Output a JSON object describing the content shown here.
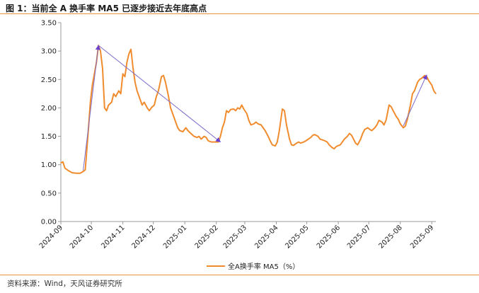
{
  "header": {
    "title": "图 1：当前全 A 换手率 MA5 已逐步接近去年底高点"
  },
  "footer": {
    "source": "资料来源：Wind，天风证券研究所"
  },
  "colors": {
    "series": "#F08C2E",
    "arrow": "#7B6BC8",
    "arrowhead": "#6A3FD0",
    "rule": "#E8913A",
    "axis": "#9a9a9a"
  },
  "chart_data": {
    "type": "line",
    "title": "",
    "xlabel": "",
    "ylabel": "",
    "ylim": [
      0,
      3.5
    ],
    "y_ticks": [
      "0.00",
      "0.50",
      "1.00",
      "1.50",
      "2.00",
      "2.50",
      "3.00",
      "3.50"
    ],
    "x_ticks": [
      "2024-09",
      "2024-10",
      "2024-11",
      "2024-12",
      "2025-01",
      "2025-02",
      "2025-03",
      "2025-04",
      "2025-05",
      "2025-06",
      "2025-07",
      "2025-08",
      "2025-09"
    ],
    "xlim": [
      "2024-09-01",
      "2025-09-05"
    ],
    "grid": false,
    "legend": "bottom-center",
    "series": [
      {
        "name": "全A换手率 MA5（%）",
        "points": [
          [
            "2024-09-01",
            1.03
          ],
          [
            "2024-09-03",
            1.05
          ],
          [
            "2024-09-05",
            0.94
          ],
          [
            "2024-09-08",
            0.9
          ],
          [
            "2024-09-12",
            0.86
          ],
          [
            "2024-09-16",
            0.85
          ],
          [
            "2024-09-20",
            0.85
          ],
          [
            "2024-09-23",
            0.88
          ],
          [
            "2024-09-25",
            0.91
          ],
          [
            "2024-09-28",
            1.6
          ],
          [
            "2024-09-30",
            2.1
          ],
          [
            "2024-10-02",
            2.4
          ],
          [
            "2024-10-04",
            2.6
          ],
          [
            "2024-10-06",
            2.8
          ],
          [
            "2024-10-08",
            3.1
          ],
          [
            "2024-10-10",
            3.0
          ],
          [
            "2024-10-12",
            2.7
          ],
          [
            "2024-10-14",
            2.0
          ],
          [
            "2024-10-16",
            1.95
          ],
          [
            "2024-10-18",
            2.05
          ],
          [
            "2024-10-21",
            2.1
          ],
          [
            "2024-10-23",
            2.25
          ],
          [
            "2024-10-25",
            2.2
          ],
          [
            "2024-10-28",
            2.3
          ],
          [
            "2024-10-30",
            2.25
          ],
          [
            "2024-11-01",
            2.6
          ],
          [
            "2024-11-03",
            2.55
          ],
          [
            "2024-11-05",
            2.8
          ],
          [
            "2024-11-07",
            2.95
          ],
          [
            "2024-11-09",
            3.03
          ],
          [
            "2024-11-11",
            2.7
          ],
          [
            "2024-11-13",
            2.45
          ],
          [
            "2024-11-15",
            2.3
          ],
          [
            "2024-11-18",
            2.15
          ],
          [
            "2024-11-20",
            2.05
          ],
          [
            "2024-11-22",
            2.1
          ],
          [
            "2024-11-25",
            2.0
          ],
          [
            "2024-11-27",
            1.95
          ],
          [
            "2024-11-29",
            2.0
          ],
          [
            "2024-12-02",
            2.05
          ],
          [
            "2024-12-04",
            2.2
          ],
          [
            "2024-12-06",
            2.3
          ],
          [
            "2024-12-09",
            2.55
          ],
          [
            "2024-12-11",
            2.57
          ],
          [
            "2024-12-13",
            2.45
          ],
          [
            "2024-12-16",
            2.2
          ],
          [
            "2024-12-18",
            2.0
          ],
          [
            "2024-12-20",
            1.9
          ],
          [
            "2024-12-23",
            1.75
          ],
          [
            "2024-12-25",
            1.65
          ],
          [
            "2024-12-27",
            1.6
          ],
          [
            "2024-12-30",
            1.58
          ],
          [
            "2025-01-02",
            1.65
          ],
          [
            "2025-01-04",
            1.6
          ],
          [
            "2025-01-07",
            1.55
          ],
          [
            "2025-01-10",
            1.5
          ],
          [
            "2025-01-13",
            1.48
          ],
          [
            "2025-01-15",
            1.5
          ],
          [
            "2025-01-17",
            1.45
          ],
          [
            "2025-01-20",
            1.5
          ],
          [
            "2025-01-22",
            1.48
          ],
          [
            "2025-01-24",
            1.42
          ],
          [
            "2025-01-27",
            1.4
          ],
          [
            "2025-02-03",
            1.4
          ],
          [
            "2025-02-05",
            1.5
          ],
          [
            "2025-02-07",
            1.65
          ],
          [
            "2025-02-09",
            1.75
          ],
          [
            "2025-02-11",
            1.95
          ],
          [
            "2025-02-13",
            1.92
          ],
          [
            "2025-02-15",
            1.97
          ],
          [
            "2025-02-18",
            1.98
          ],
          [
            "2025-02-20",
            1.95
          ],
          [
            "2025-02-22",
            2.0
          ],
          [
            "2025-02-24",
            1.98
          ],
          [
            "2025-02-26",
            2.05
          ],
          [
            "2025-02-28",
            1.98
          ],
          [
            "2025-03-03",
            1.9
          ],
          [
            "2025-03-05",
            1.78
          ],
          [
            "2025-03-07",
            1.7
          ],
          [
            "2025-03-10",
            1.72
          ],
          [
            "2025-03-12",
            1.75
          ],
          [
            "2025-03-14",
            1.72
          ],
          [
            "2025-03-17",
            1.7
          ],
          [
            "2025-03-19",
            1.65
          ],
          [
            "2025-03-21",
            1.6
          ],
          [
            "2025-03-24",
            1.5
          ],
          [
            "2025-03-26",
            1.42
          ],
          [
            "2025-03-28",
            1.35
          ],
          [
            "2025-03-31",
            1.33
          ],
          [
            "2025-04-02",
            1.4
          ],
          [
            "2025-04-04",
            1.6
          ],
          [
            "2025-04-07",
            1.98
          ],
          [
            "2025-04-09",
            1.95
          ],
          [
            "2025-04-11",
            1.7
          ],
          [
            "2025-04-14",
            1.45
          ],
          [
            "2025-04-16",
            1.35
          ],
          [
            "2025-04-18",
            1.34
          ],
          [
            "2025-04-21",
            1.38
          ],
          [
            "2025-04-23",
            1.4
          ],
          [
            "2025-04-25",
            1.38
          ],
          [
            "2025-04-28",
            1.4
          ],
          [
            "2025-04-30",
            1.42
          ],
          [
            "2025-05-05",
            1.48
          ],
          [
            "2025-05-07",
            1.52
          ],
          [
            "2025-05-09",
            1.53
          ],
          [
            "2025-05-12",
            1.5
          ],
          [
            "2025-05-14",
            1.45
          ],
          [
            "2025-05-16",
            1.44
          ],
          [
            "2025-05-19",
            1.42
          ],
          [
            "2025-05-21",
            1.4
          ],
          [
            "2025-05-23",
            1.35
          ],
          [
            "2025-05-26",
            1.3
          ],
          [
            "2025-05-28",
            1.28
          ],
          [
            "2025-05-30",
            1.32
          ],
          [
            "2025-06-03",
            1.35
          ],
          [
            "2025-06-05",
            1.4
          ],
          [
            "2025-06-07",
            1.45
          ],
          [
            "2025-06-10",
            1.5
          ],
          [
            "2025-06-12",
            1.55
          ],
          [
            "2025-06-14",
            1.52
          ],
          [
            "2025-06-16",
            1.45
          ],
          [
            "2025-06-18",
            1.38
          ],
          [
            "2025-06-20",
            1.35
          ],
          [
            "2025-06-23",
            1.45
          ],
          [
            "2025-06-25",
            1.55
          ],
          [
            "2025-06-27",
            1.62
          ],
          [
            "2025-06-30",
            1.65
          ],
          [
            "2025-07-02",
            1.62
          ],
          [
            "2025-07-04",
            1.6
          ],
          [
            "2025-07-07",
            1.65
          ],
          [
            "2025-07-09",
            1.7
          ],
          [
            "2025-07-11",
            1.78
          ],
          [
            "2025-07-14",
            1.75
          ],
          [
            "2025-07-16",
            1.7
          ],
          [
            "2025-07-18",
            1.78
          ],
          [
            "2025-07-21",
            2.05
          ],
          [
            "2025-07-23",
            2.02
          ],
          [
            "2025-07-25",
            1.95
          ],
          [
            "2025-07-28",
            1.85
          ],
          [
            "2025-07-30",
            1.8
          ],
          [
            "2025-08-01",
            1.72
          ],
          [
            "2025-08-04",
            1.65
          ],
          [
            "2025-08-06",
            1.68
          ],
          [
            "2025-08-08",
            1.8
          ],
          [
            "2025-08-11",
            2.05
          ],
          [
            "2025-08-13",
            2.25
          ],
          [
            "2025-08-15",
            2.3
          ],
          [
            "2025-08-18",
            2.45
          ],
          [
            "2025-08-20",
            2.5
          ],
          [
            "2025-08-22",
            2.52
          ],
          [
            "2025-08-25",
            2.57
          ],
          [
            "2025-08-27",
            2.55
          ],
          [
            "2025-08-29",
            2.48
          ],
          [
            "2025-09-01",
            2.4
          ],
          [
            "2025-09-03",
            2.3
          ],
          [
            "2025-09-05",
            2.25
          ]
        ]
      }
    ],
    "annotations": [
      {
        "type": "arrow",
        "from": [
          "2024-09-23",
          0.9
        ],
        "to": [
          "2024-10-08",
          3.1
        ]
      },
      {
        "type": "arrow",
        "from": [
          "2024-10-08",
          3.1
        ],
        "to": [
          "2025-02-05",
          1.4
        ]
      },
      {
        "type": "arrow",
        "from": [
          "2025-08-04",
          1.68
        ],
        "to": [
          "2025-08-27",
          2.58
        ]
      }
    ]
  }
}
